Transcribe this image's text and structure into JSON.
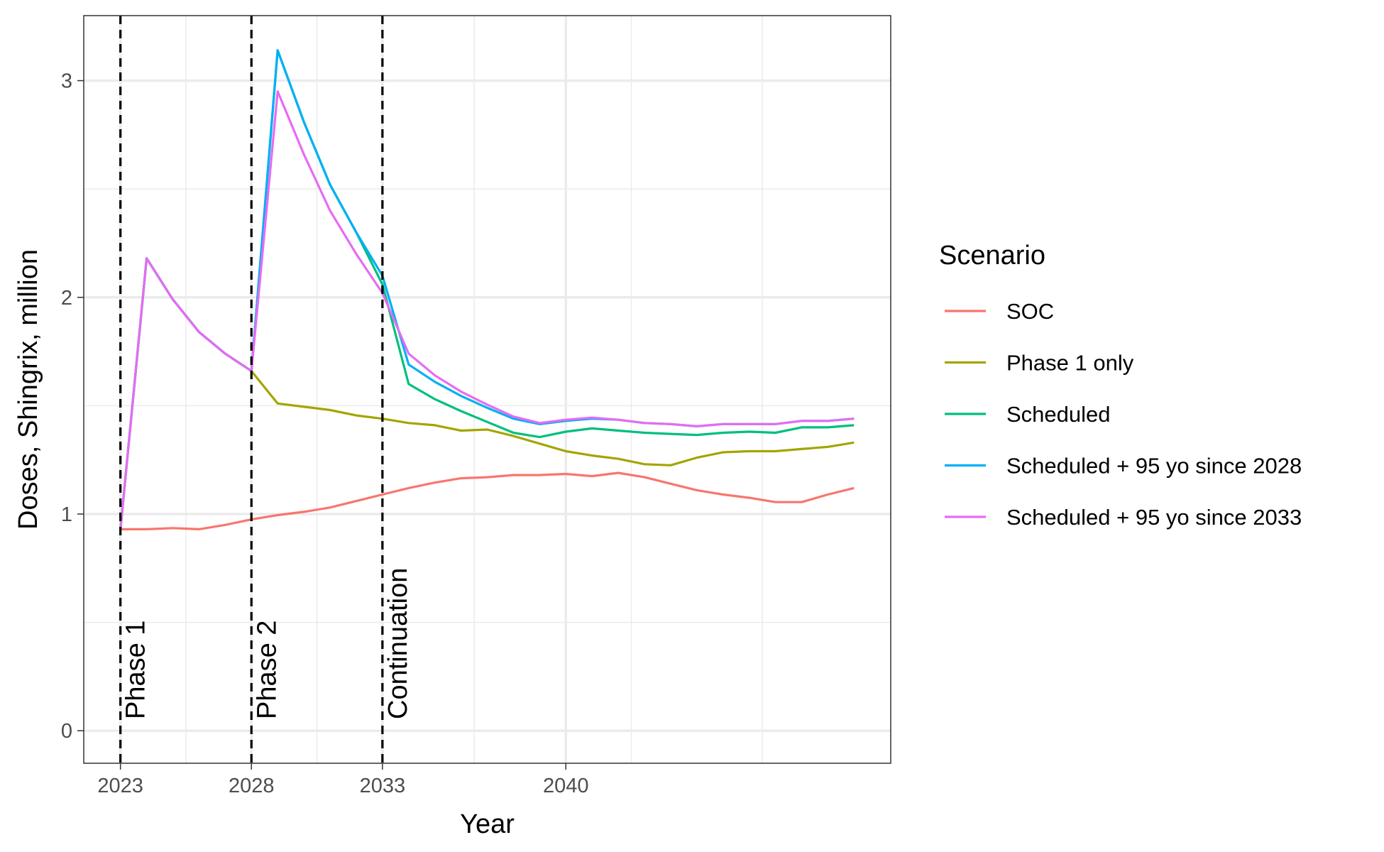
{
  "chart_data": {
    "type": "line",
    "xlabel": "Year",
    "ylabel": "Doses, Shingrix, million",
    "xlim": [
      2021.6,
      2052.4
    ],
    "ylim": [
      -0.15,
      3.3
    ],
    "x_ticks": [
      2023,
      2028,
      2033,
      2040
    ],
    "x_minor_ticks": [
      2025.5,
      2030.5,
      2036.5,
      2042.5,
      2047.5
    ],
    "y_ticks": [
      0,
      1,
      2,
      3
    ],
    "y_minor_ticks": [
      0.5,
      1.5,
      2.5
    ],
    "grid": true,
    "legend": {
      "title": "Scenario",
      "position": "right"
    },
    "vlines": [
      {
        "x": 2023,
        "label": "Phase 1",
        "style": "dashed"
      },
      {
        "x": 2028,
        "label": "Phase 2",
        "style": "dashed"
      },
      {
        "x": 2033,
        "label": "Continuation",
        "style": "dashed"
      }
    ],
    "x": [
      2023,
      2024,
      2025,
      2026,
      2027,
      2028,
      2029,
      2030,
      2031,
      2032,
      2033,
      2034,
      2035,
      2036,
      2037,
      2038,
      2039,
      2040,
      2041,
      2042,
      2043,
      2044,
      2045,
      2046,
      2047,
      2048,
      2049,
      2050,
      2051
    ],
    "series": [
      {
        "name": "SOC",
        "color": "#F8766D",
        "values": [
          0.93,
          0.93,
          0.935,
          0.93,
          0.95,
          0.975,
          0.995,
          1.01,
          1.03,
          1.06,
          1.09,
          1.12,
          1.145,
          1.165,
          1.17,
          1.18,
          1.18,
          1.185,
          1.175,
          1.19,
          1.17,
          1.14,
          1.11,
          1.09,
          1.075,
          1.055,
          1.055,
          1.09,
          1.12
        ]
      },
      {
        "name": "Phase 1 only",
        "color": "#A3A500",
        "values": [
          0.93,
          2.18,
          1.99,
          1.84,
          1.74,
          1.66,
          1.51,
          1.495,
          1.48,
          1.455,
          1.44,
          1.42,
          1.41,
          1.385,
          1.39,
          1.36,
          1.325,
          1.29,
          1.27,
          1.255,
          1.23,
          1.225,
          1.26,
          1.285,
          1.29,
          1.29,
          1.3,
          1.31,
          1.33
        ]
      },
      {
        "name": "Scheduled",
        "color": "#00BF7D",
        "values": [
          0.93,
          2.18,
          1.99,
          1.84,
          1.74,
          1.66,
          3.14,
          2.81,
          2.52,
          2.3,
          2.06,
          1.6,
          1.53,
          1.475,
          1.425,
          1.375,
          1.355,
          1.38,
          1.395,
          1.385,
          1.375,
          1.37,
          1.365,
          1.375,
          1.38,
          1.375,
          1.4,
          1.4,
          1.41
        ]
      },
      {
        "name": "Scheduled + 95 yo since 2028",
        "color": "#00B0F6",
        "values": [
          0.93,
          2.18,
          1.99,
          1.84,
          1.74,
          1.66,
          3.14,
          2.81,
          2.52,
          2.3,
          2.1,
          1.69,
          1.61,
          1.545,
          1.49,
          1.44,
          1.415,
          1.43,
          1.44,
          1.435,
          1.42,
          1.415,
          1.405,
          1.415,
          1.415,
          1.415,
          1.43,
          1.43,
          1.44
        ]
      },
      {
        "name": "Scheduled + 95 yo since 2033",
        "color": "#E76BF3",
        "values": [
          0.93,
          2.18,
          1.99,
          1.84,
          1.74,
          1.66,
          2.95,
          2.66,
          2.4,
          2.2,
          2.02,
          1.74,
          1.64,
          1.565,
          1.505,
          1.45,
          1.42,
          1.435,
          1.445,
          1.435,
          1.42,
          1.415,
          1.405,
          1.415,
          1.415,
          1.415,
          1.43,
          1.43,
          1.44
        ]
      }
    ]
  }
}
